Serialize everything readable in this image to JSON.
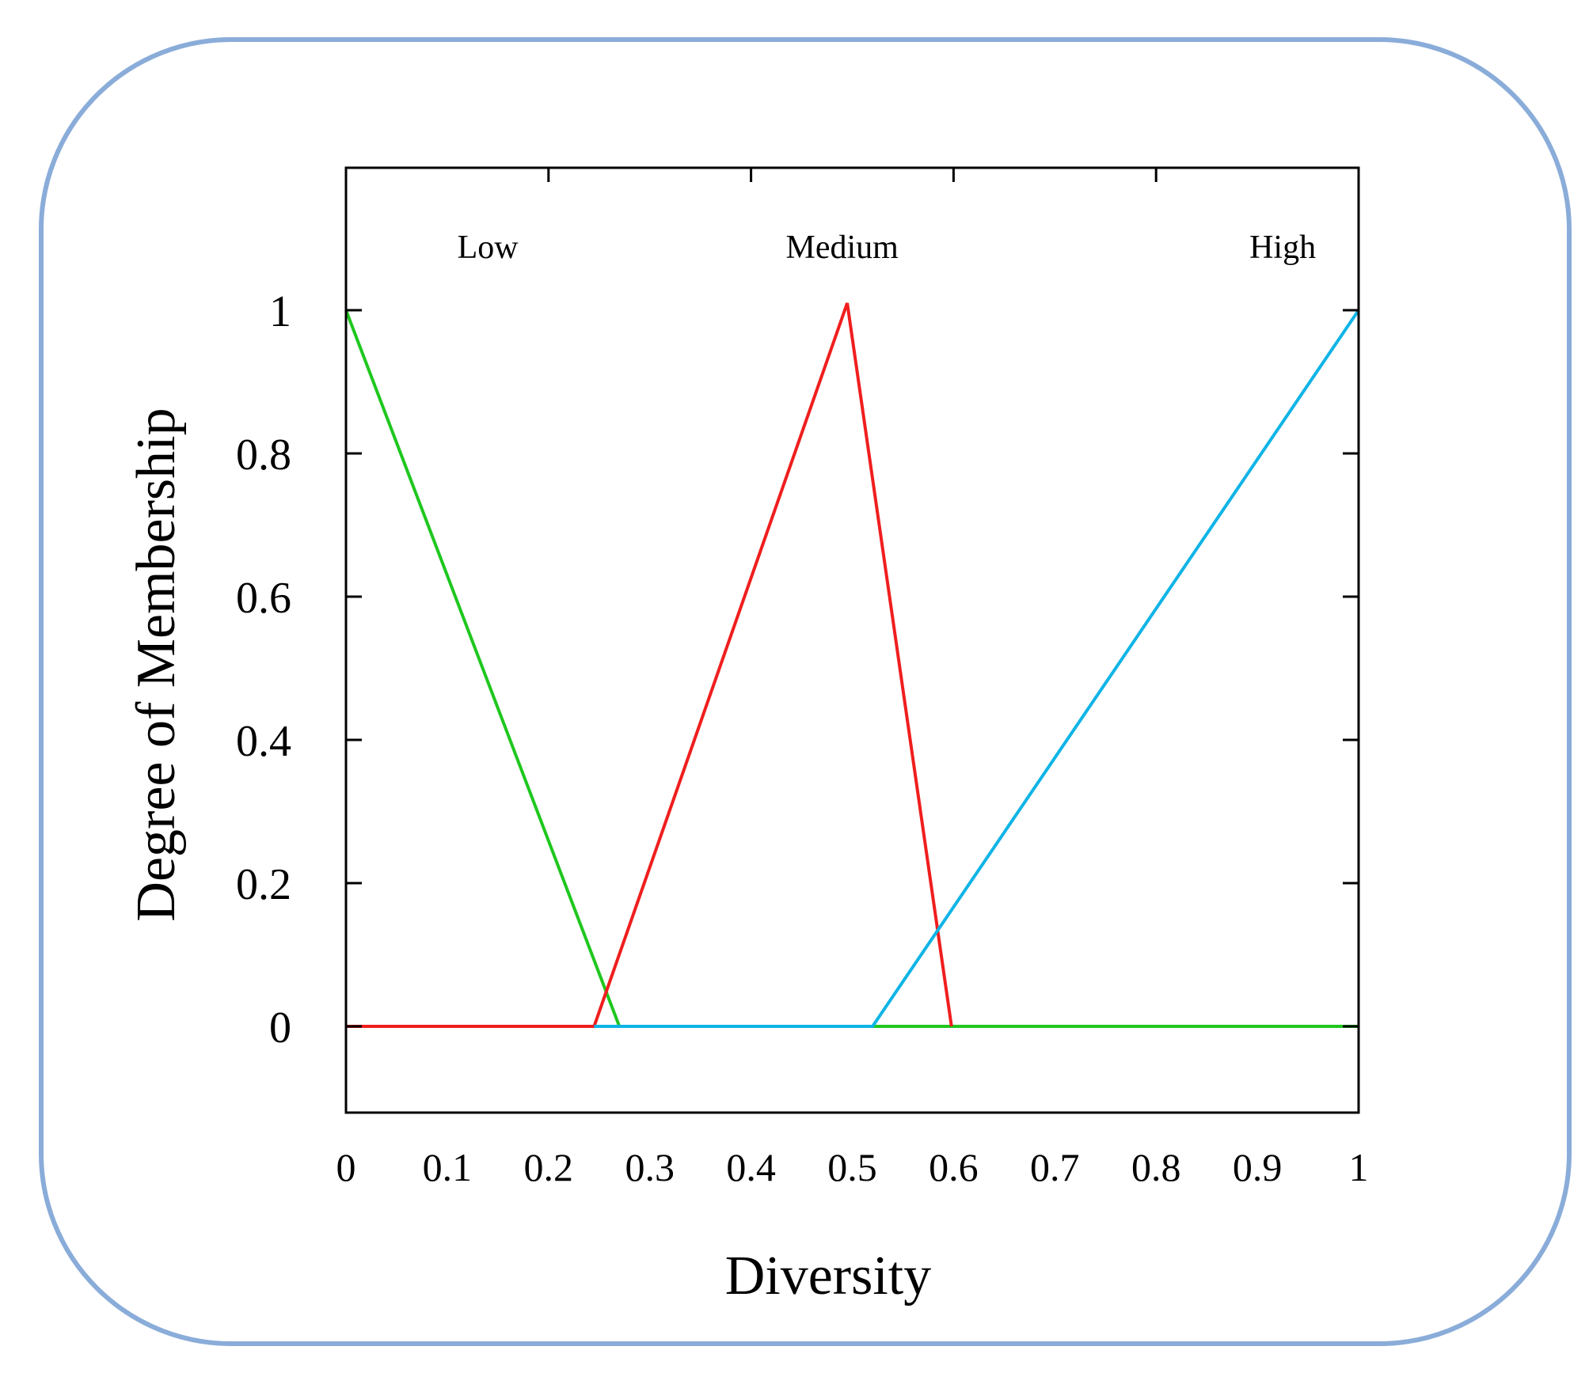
{
  "chart_data": {
    "type": "line",
    "xlabel": "Diversity",
    "ylabel": "Degree of Membership",
    "xlim": [
      0,
      1
    ],
    "ylim": [
      -0.12,
      1.2
    ],
    "xticks": [
      "0",
      "0.1",
      "0.2",
      "0.3",
      "0.4",
      "0.5",
      "0.6",
      "0.7",
      "0.8",
      "0.9",
      "1"
    ],
    "yticks": [
      "0",
      "0.2",
      "0.4",
      "0.6",
      "0.8",
      "1"
    ],
    "grid": false,
    "legend": "labels above curves",
    "series": [
      {
        "name": "Low",
        "color": "#1fc71f",
        "x": [
          0,
          0.27,
          1
        ],
        "y": [
          1,
          0,
          0
        ],
        "label_x": 0.14
      },
      {
        "name": "Medium",
        "color": "#f01e1e",
        "x": [
          0,
          0.245,
          0.495,
          0.598
        ],
        "y": [
          0,
          0,
          1.01,
          0
        ],
        "label_x": 0.49
      },
      {
        "name": "High",
        "color": "#0fb4e6",
        "x": [
          0.245,
          0.52,
          1
        ],
        "y": [
          0,
          0,
          1
        ],
        "label_x": 0.925
      }
    ]
  }
}
